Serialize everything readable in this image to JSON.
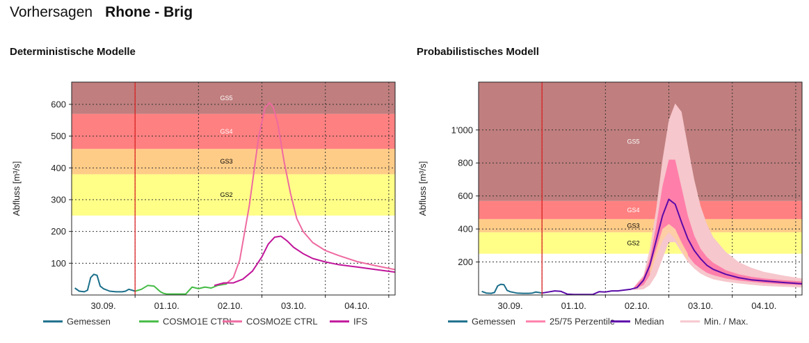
{
  "header": {
    "label": "Vorhersagen",
    "station": "Rhone - Brig"
  },
  "colors": {
    "gs5": "#c07e7e",
    "gs4": "#ff8080",
    "gs3": "#ffcc88",
    "gs2": "#ffff88",
    "gemessen": "#1a6e8a",
    "cosmo1e": "#44bb44",
    "cosmo2e": "#ee6aa0",
    "ifs": "#c0159a",
    "median": "#5a0aa8",
    "p25_75": "#ff7faa",
    "minmax": "#f6c7cc",
    "now_line": "#dd2222"
  },
  "chart_data": [
    {
      "id": "deterministic",
      "type": "line",
      "title": "Deterministische Modelle",
      "xlabel": "",
      "ylabel": "Abfluss [m³/s]",
      "x_ticks": [
        "30.09.",
        "01.10.",
        "02.10.",
        "03.10.",
        "04.10."
      ],
      "x_range": [
        -0.5,
        4.6
      ],
      "now": 0.5,
      "ylim": [
        0,
        670
      ],
      "y_ticks": [
        100,
        200,
        300,
        400,
        500,
        600
      ],
      "y_tick_labels": [
        "100",
        "200",
        "300",
        "400",
        "500",
        "600"
      ],
      "zones": [
        {
          "name": "GS2",
          "from": 250,
          "to": 380,
          "color": "#ffff88",
          "label_color": "#000000"
        },
        {
          "name": "GS3",
          "from": 380,
          "to": 460,
          "color": "#ffcc88",
          "label_color": "#000000"
        },
        {
          "name": "GS4",
          "from": 460,
          "to": 570,
          "color": "#ff8080",
          "label_color": "#ffffff"
        },
        {
          "name": "GS5",
          "from": 570,
          "to": 670,
          "color": "#c07e7e",
          "label_color": "#ffffff"
        }
      ],
      "series": [
        {
          "name": "Gemessen",
          "color": "#1a6e8a",
          "x": [
            -0.45,
            -0.38,
            -0.3,
            -0.25,
            -0.2,
            -0.15,
            -0.1,
            -0.05,
            0.0,
            0.1,
            0.2,
            0.3,
            0.35,
            0.4,
            0.45,
            0.5
          ],
          "y": [
            22,
            12,
            10,
            15,
            55,
            65,
            62,
            28,
            20,
            12,
            10,
            10,
            12,
            18,
            15,
            12
          ]
        },
        {
          "name": "COSMO1E CTRL",
          "color": "#44bb44",
          "x": [
            0.5,
            0.6,
            0.7,
            0.8,
            0.9,
            0.95,
            1.0,
            1.1,
            1.2,
            1.3,
            1.4,
            1.5,
            1.6,
            1.7,
            1.8,
            1.95
          ],
          "y": [
            12,
            18,
            30,
            28,
            10,
            5,
            3,
            3,
            3,
            3,
            25,
            20,
            25,
            22,
            30,
            35
          ]
        },
        {
          "name": "COSMO2E CTRL",
          "color": "#ee6aa0",
          "x": [
            1.75,
            1.85,
            1.95,
            2.05,
            2.15,
            2.3,
            2.45,
            2.55,
            2.62,
            2.68,
            2.75,
            2.85,
            2.95,
            3.05,
            3.15,
            3.3,
            3.5,
            3.7,
            4.0,
            4.3,
            4.6
          ],
          "y": [
            30,
            35,
            38,
            55,
            110,
            280,
            500,
            590,
            605,
            590,
            540,
            420,
            320,
            240,
            200,
            165,
            140,
            125,
            105,
            92,
            80
          ]
        },
        {
          "name": "IFS",
          "color": "#c0159a",
          "x": [
            1.75,
            1.9,
            2.05,
            2.2,
            2.35,
            2.5,
            2.6,
            2.7,
            2.8,
            2.9,
            3.0,
            3.15,
            3.3,
            3.5,
            3.7,
            4.0,
            4.3,
            4.6
          ],
          "y": [
            30,
            38,
            38,
            50,
            75,
            120,
            160,
            182,
            185,
            170,
            150,
            130,
            115,
            104,
            96,
            88,
            80,
            72
          ]
        }
      ],
      "legend": [
        "Gemessen",
        "COSMO1E CTRL",
        "COSMO2E CTRL",
        "IFS"
      ]
    },
    {
      "id": "probabilistic",
      "type": "area",
      "title": "Probabilistisches Modell",
      "xlabel": "",
      "ylabel": "Abfluss [m³/s]",
      "x_ticks": [
        "30.09.",
        "01.10.",
        "02.10.",
        "03.10.",
        "04.10."
      ],
      "x_range": [
        -0.5,
        4.6
      ],
      "now": 0.5,
      "ylim": [
        0,
        1290
      ],
      "y_ticks": [
        200,
        400,
        600,
        800,
        1000
      ],
      "y_tick_labels": [
        "200",
        "400",
        "600",
        "800",
        "1'000"
      ],
      "zones": [
        {
          "name": "GS2",
          "from": 250,
          "to": 380,
          "color": "#ffff88",
          "label_color": "#000000"
        },
        {
          "name": "GS3",
          "from": 380,
          "to": 460,
          "color": "#ffcc88",
          "label_color": "#000000"
        },
        {
          "name": "GS4",
          "from": 460,
          "to": 570,
          "color": "#ff8080",
          "label_color": "#ffffff"
        },
        {
          "name": "GS5",
          "from": 570,
          "to": 1290,
          "color": "#c07e7e",
          "label_color": "#ffffff"
        }
      ],
      "series": [
        {
          "name": "Gemessen",
          "color": "#1a6e8a",
          "x": [
            -0.45,
            -0.38,
            -0.3,
            -0.25,
            -0.2,
            -0.15,
            -0.1,
            -0.05,
            0.0,
            0.1,
            0.2,
            0.3,
            0.35,
            0.4,
            0.45,
            0.5
          ],
          "y": [
            22,
            12,
            10,
            15,
            55,
            65,
            62,
            28,
            20,
            12,
            10,
            10,
            12,
            18,
            15,
            12
          ]
        },
        {
          "name": "Median",
          "color": "#5a0aa8",
          "x": [
            0.5,
            0.6,
            0.7,
            0.8,
            0.9,
            1.0,
            1.1,
            1.2,
            1.3,
            1.4,
            1.5,
            1.6,
            1.7,
            1.8,
            1.9,
            2.0,
            2.1,
            2.2,
            2.3,
            2.4,
            2.5,
            2.6,
            2.7,
            2.8,
            2.9,
            3.0,
            3.1,
            3.2,
            3.4,
            3.6,
            3.8,
            4.0,
            4.3,
            4.6
          ],
          "y": [
            12,
            18,
            25,
            22,
            5,
            3,
            3,
            3,
            3,
            20,
            18,
            25,
            25,
            30,
            35,
            45,
            90,
            180,
            330,
            480,
            580,
            550,
            440,
            340,
            270,
            220,
            180,
            155,
            125,
            105,
            92,
            85,
            76,
            68
          ]
        }
      ],
      "bands": [
        {
          "name": "Min. / Max.",
          "color": "#f6c7cc",
          "x": [
            1.95,
            2.1,
            2.2,
            2.3,
            2.4,
            2.5,
            2.6,
            2.7,
            2.8,
            2.9,
            3.0,
            3.1,
            3.2,
            3.4,
            3.6,
            3.8,
            4.0,
            4.3,
            4.6
          ],
          "upper": [
            50,
            120,
            280,
            520,
            820,
            1060,
            1160,
            1110,
            900,
            700,
            540,
            430,
            350,
            260,
            200,
            165,
            140,
            118,
            100
          ],
          "lower": [
            30,
            35,
            60,
            120,
            220,
            320,
            320,
            260,
            200,
            160,
            130,
            110,
            95,
            80,
            70,
            62,
            55,
            50,
            45
          ]
        },
        {
          "name": "25/75 Perzentile",
          "color": "#ff7faa",
          "x": [
            1.95,
            2.1,
            2.2,
            2.3,
            2.4,
            2.5,
            2.6,
            2.7,
            2.8,
            2.9,
            3.0,
            3.1,
            3.2,
            3.4,
            3.6,
            3.8,
            4.0,
            4.3,
            4.6
          ],
          "upper": [
            45,
            110,
            220,
            420,
            660,
            820,
            820,
            650,
            480,
            360,
            280,
            230,
            195,
            150,
            125,
            110,
            100,
            90,
            82
          ],
          "lower": [
            35,
            60,
            120,
            250,
            400,
            430,
            400,
            310,
            240,
            190,
            160,
            135,
            120,
            100,
            88,
            80,
            72,
            65,
            60
          ]
        }
      ],
      "median_shadow": {
        "name": "Median shadow",
        "color": "#ffcfa0",
        "x": [
          2.2,
          2.3,
          2.4,
          2.5,
          2.6,
          2.7,
          2.8
        ],
        "upper": [
          160,
          280,
          400,
          430,
          400,
          320,
          250
        ],
        "lower": [
          120,
          230,
          330,
          380,
          340,
          270,
          210
        ]
      },
      "legend": [
        "Gemessen",
        "25/75 Perzentile",
        "Median",
        "Min. / Max."
      ]
    }
  ]
}
